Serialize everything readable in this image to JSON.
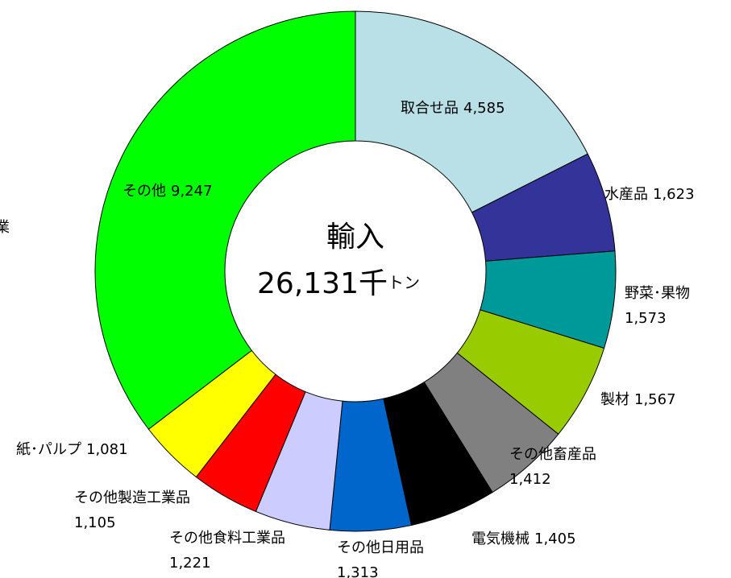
{
  "chart_data": {
    "type": "donut",
    "center_title": "輸入",
    "center_value": "26,131千",
    "center_unit": "トン",
    "clipped_text": "業",
    "categories": [
      "取合せ品",
      "水産品",
      "野菜･果物",
      "製材",
      "その他畜産品",
      "電気機械",
      "その他日用品",
      "その他食料工業品",
      "その他製造工業品",
      "紙･パルプ",
      "その他"
    ],
    "values": [
      4585,
      1623,
      1573,
      1567,
      1412,
      1405,
      1313,
      1221,
      1105,
      1081,
      9247
    ],
    "value_labels": [
      "4,585",
      "1,623",
      "1,573",
      "1,567",
      "1,412",
      "1,405",
      "1,313",
      "1,221",
      "1,105",
      "1,081",
      "9,247"
    ],
    "colors": [
      "#b8e0e6",
      "#333399",
      "#009999",
      "#99cc00",
      "#808080",
      "#000000",
      "#0066cc",
      "#ccccff",
      "#ff0000",
      "#ffff00",
      "#00ff00"
    ]
  }
}
